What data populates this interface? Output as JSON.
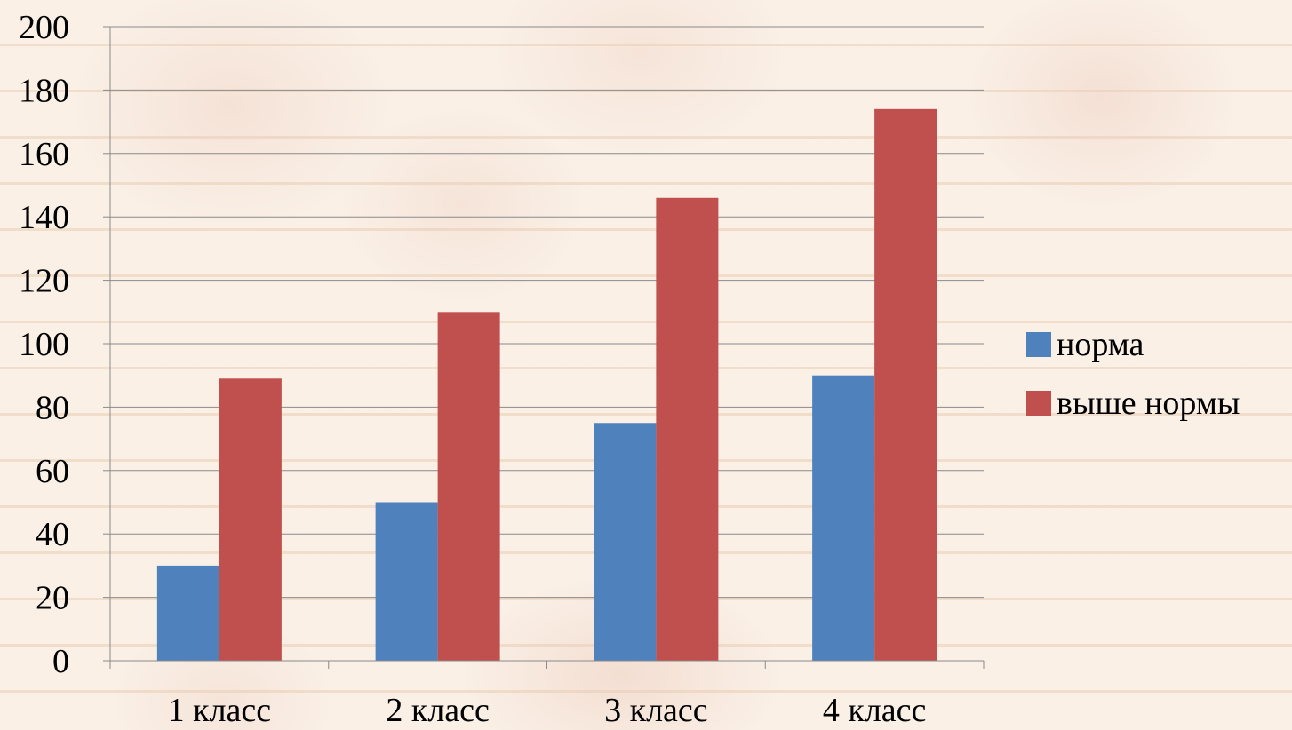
{
  "chart_data": {
    "type": "bar",
    "categories": [
      "1 класс",
      "2 класс",
      "3 класс",
      "4 класс"
    ],
    "series": [
      {
        "name": "норма",
        "values": [
          30,
          50,
          75,
          90
        ],
        "color": "#4f81bd"
      },
      {
        "name": "выше нормы",
        "values": [
          89,
          110,
          146,
          174
        ],
        "color": "#c0504d"
      }
    ],
    "ylim": [
      0,
      200
    ],
    "yticks": [
      0,
      20,
      40,
      60,
      80,
      100,
      120,
      140,
      160,
      180,
      200
    ],
    "grid": true,
    "legend_position": "right"
  }
}
